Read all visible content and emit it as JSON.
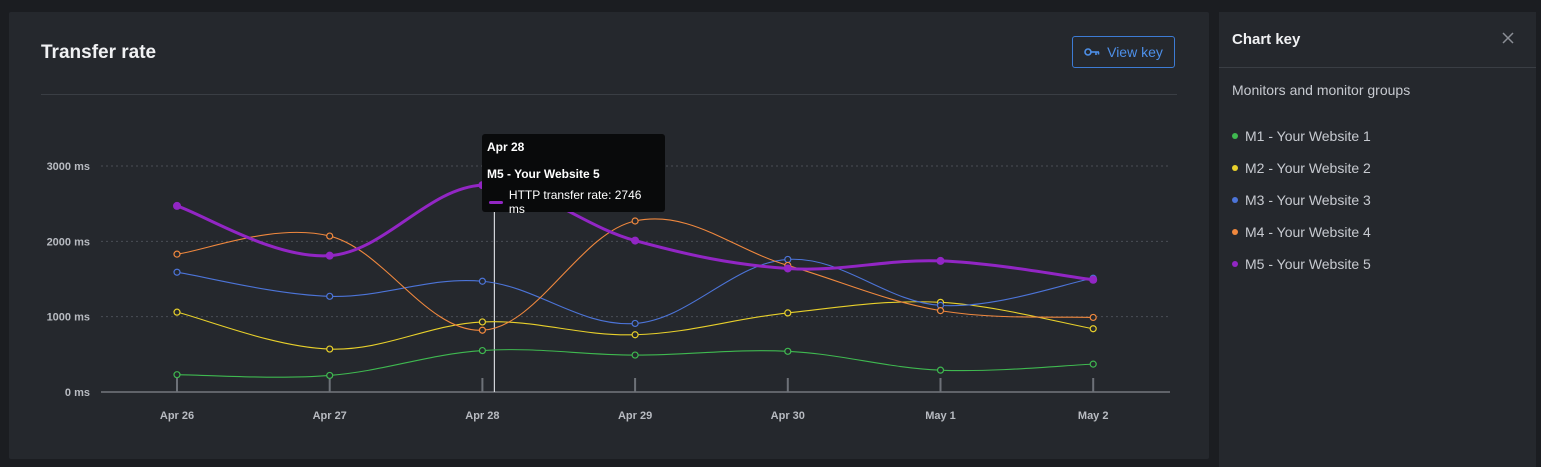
{
  "main_panel": {
    "title": "Transfer rate",
    "view_key_label": "View key",
    "view_key_icon": "key-icon"
  },
  "tooltip": {
    "date": "Apr 28",
    "series": "M5 - Your Website 5",
    "row": "HTTP transfer rate: 2746 ms"
  },
  "key_panel": {
    "title": "Chart key",
    "close_icon": "close-icon",
    "subtitle": "Monitors and monitor groups",
    "items": [
      {
        "label": "M1 - Your Website 1",
        "color": "#3fb950"
      },
      {
        "label": "M2 - Your Website 2",
        "color": "#e8d02b"
      },
      {
        "label": "M3 - Your Website 3",
        "color": "#4c74d8"
      },
      {
        "label": "M4 - Your Website 4",
        "color": "#f0883e"
      },
      {
        "label": "M5 - Your Website 5",
        "color": "#9226c4"
      }
    ]
  },
  "chart_data": {
    "type": "line",
    "x": [
      "Apr 26",
      "Apr 27",
      "Apr 28",
      "Apr 29",
      "Apr 30",
      "May 1",
      "May 2"
    ],
    "ylim": [
      0,
      3000
    ],
    "y_ticks": [
      0,
      1000,
      2000,
      3000
    ],
    "y_tick_labels": [
      "0 ms",
      "1000 ms",
      "2000 ms",
      "3000 ms"
    ],
    "grid": true,
    "legend": "side-panel",
    "series": [
      {
        "name": "M1 - Your Website 1",
        "color": "#3fb950",
        "values": [
          230,
          220,
          550,
          490,
          540,
          290,
          370
        ]
      },
      {
        "name": "M2 - Your Website 2",
        "color": "#e8d02b",
        "values": [
          1060,
          570,
          930,
          760,
          1050,
          1190,
          840
        ]
      },
      {
        "name": "M3 - Your Website 3",
        "color": "#4c74d8",
        "values": [
          1590,
          1270,
          1470,
          910,
          1760,
          1150,
          1510
        ]
      },
      {
        "name": "M4 - Your Website 4",
        "color": "#f0883e",
        "values": [
          1830,
          2070,
          820,
          2270,
          1680,
          1080,
          990
        ]
      },
      {
        "name": "M5 - Your Website 5",
        "color": "#9226c4",
        "values": [
          2470,
          1810,
          2746,
          2010,
          1640,
          1740,
          1490
        ]
      }
    ],
    "highlight": {
      "x": "Apr 28",
      "series": "M5 - Your Website 5",
      "value": 2746
    }
  }
}
